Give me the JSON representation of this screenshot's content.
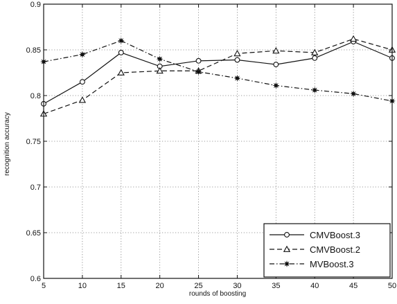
{
  "chart_data": {
    "type": "line",
    "title": "",
    "xlabel": "rounds of boosting",
    "ylabel": "recognition accuracy",
    "x": [
      5,
      10,
      15,
      20,
      25,
      30,
      35,
      40,
      45,
      50
    ],
    "xlim": [
      5,
      50
    ],
    "ylim": [
      0.6,
      0.9
    ],
    "x_ticks": [
      "5",
      "10",
      "15",
      "20",
      "25",
      "30",
      "35",
      "40",
      "45",
      "50"
    ],
    "y_ticks": [
      "0.6",
      "0.65",
      "0.7",
      "0.75",
      "0.8",
      "0.85",
      "0.9"
    ],
    "grid": true,
    "legend_position": "bottom-right",
    "series": [
      {
        "name": "CMVBoost.3",
        "line_style": "solid",
        "marker": "circle",
        "values": [
          0.791,
          0.815,
          0.847,
          0.832,
          0.838,
          0.839,
          0.834,
          0.841,
          0.859,
          0.841
        ]
      },
      {
        "name": "CMVBoost.2",
        "line_style": "dashed",
        "marker": "triangle",
        "values": [
          0.78,
          0.795,
          0.825,
          0.827,
          0.827,
          0.846,
          0.849,
          0.847,
          0.862,
          0.85
        ]
      },
      {
        "name": "MVBoost.3",
        "line_style": "dash-dot",
        "marker": "star",
        "values": [
          0.837,
          0.845,
          0.86,
          0.84,
          0.826,
          0.819,
          0.811,
          0.806,
          0.802,
          0.794
        ]
      }
    ]
  }
}
